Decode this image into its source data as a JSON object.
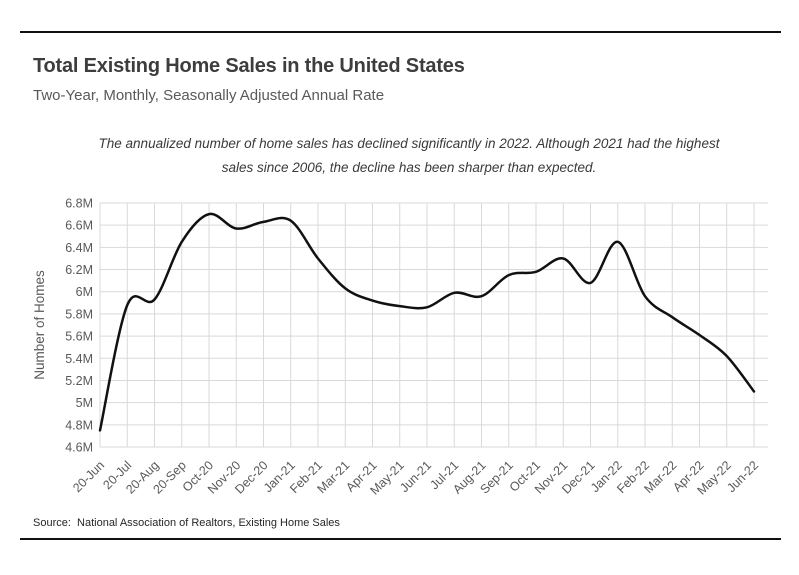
{
  "chart_data": {
    "type": "line",
    "title": "Total Existing Home Sales in the United States",
    "subtitle": "Two-Year, Monthly, Seasonally Adjusted Annual Rate",
    "note": "The annualized number of home sales has declined significantly in 2022. Although 2021 had the highest sales since 2006, the decline has been sharper than expected.",
    "source": "Source:  National Association of Realtors, Existing Home Sales",
    "xlabel": "",
    "ylabel": "Number of Homes",
    "categories": [
      "20-Jun",
      "20-Jul",
      "20-Aug",
      "20-Sep",
      "Oct-20",
      "Nov-20",
      "Dec-20",
      "Jan-21",
      "Feb-21",
      "Mar-21",
      "Apr-21",
      "May-21",
      "Jun-21",
      "Jul-21",
      "Aug-21",
      "Sep-21",
      "Oct-21",
      "Nov-21",
      "Dec-21",
      "Jan-22",
      "Feb-22",
      "Mar-22",
      "Apr-22",
      "May-22",
      "Jun-22"
    ],
    "values": [
      4.75,
      5.88,
      5.93,
      6.45,
      6.7,
      6.57,
      6.63,
      6.64,
      6.3,
      6.03,
      5.92,
      5.87,
      5.86,
      5.99,
      5.96,
      6.15,
      6.18,
      6.3,
      6.08,
      6.45,
      5.96,
      5.77,
      5.61,
      5.42,
      5.1
    ],
    "value_unit": "millions of homes, seasonally adjusted annual rate",
    "ylim": [
      4.6,
      6.8
    ],
    "ytick_step": 0.2,
    "ytick_labels": [
      "6.8M",
      "6.6M",
      "6.4M",
      "6.2M",
      "6M",
      "5.8M",
      "5.6M",
      "5.4M",
      "5.2M",
      "5M",
      "4.8M",
      "4.6M"
    ],
    "grid": true,
    "smooth": true,
    "legend": "none",
    "line_color": "#111111",
    "grid_color": "#d9d9d9",
    "tick_color": "#595959"
  }
}
